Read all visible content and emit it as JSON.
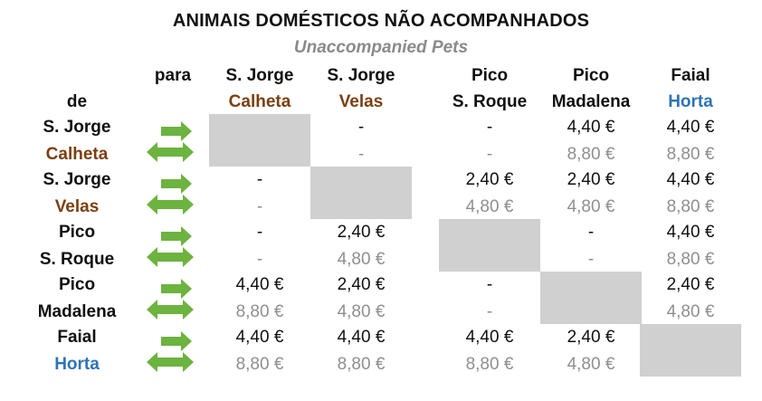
{
  "title": "ANIMAIS DOMÉSTICOS  NÃO ACOMPANHADOS",
  "subtitle": "Unaccompanied Pets",
  "corner": {
    "para": "para",
    "de": "de"
  },
  "columns": [
    {
      "line1": "S. Jorge",
      "line2": "Calheta",
      "color2": "brown"
    },
    {
      "line1": "S. Jorge",
      "line2": "Velas",
      "color2": "brown"
    },
    {
      "line1": "Pico",
      "line2": "S. Roque",
      "color2": "black"
    },
    {
      "line1": "Pico",
      "line2": "Madalena",
      "color2": "black"
    },
    {
      "line1": "Faial",
      "line2": "Horta",
      "color2": "blue"
    }
  ],
  "rows": [
    {
      "line1": "S. Jorge",
      "line2": "Calheta",
      "color2": "brown",
      "cells": [
        null,
        {
          "top": "-",
          "bot": "-"
        },
        {
          "top": "-",
          "bot": "-"
        },
        {
          "top": "4,40 €",
          "bot": "8,80 €"
        },
        {
          "top": "4,40 €",
          "bot": "8,80 €"
        }
      ]
    },
    {
      "line1": "S. Jorge",
      "line2": "Velas",
      "color2": "brown",
      "cells": [
        {
          "top": "-",
          "bot": "-"
        },
        null,
        {
          "top": "2,40 €",
          "bot": "4,80 €"
        },
        {
          "top": "2,40 €",
          "bot": "4,80 €"
        },
        {
          "top": "4,40 €",
          "bot": "8,80 €"
        }
      ]
    },
    {
      "line1": "Pico",
      "line2": "S. Roque",
      "color2": "black",
      "cells": [
        {
          "top": "-",
          "bot": "-"
        },
        {
          "top": "2,40 €",
          "bot": "4,80 €"
        },
        null,
        {
          "top": "-",
          "bot": "-"
        },
        {
          "top": "4,40 €",
          "bot": "8,80 €"
        }
      ]
    },
    {
      "line1": "Pico",
      "line2": "Madalena",
      "color2": "black",
      "cells": [
        {
          "top": "4,40 €",
          "bot": "8,80 €"
        },
        {
          "top": "2,40 €",
          "bot": "4,80 €"
        },
        {
          "top": "-",
          "bot": "-"
        },
        null,
        {
          "top": "2,40 €",
          "bot": "4,80 €"
        }
      ]
    },
    {
      "line1": "Faial",
      "line2": "Horta",
      "color2": "blue",
      "cells": [
        {
          "top": "4,40 €",
          "bot": "8,80 €"
        },
        {
          "top": "4,40 €",
          "bot": "8,80 €"
        },
        {
          "top": "4,40 €",
          "bot": "8,80 €"
        },
        {
          "top": "2,40 €",
          "bot": "4,80 €"
        },
        null
      ]
    }
  ],
  "icons": {
    "direction": "one-way-and-return-arrows-icon"
  },
  "colors": {
    "brown": "#7b3f10",
    "blue": "#2e74b5",
    "arrow_green": "#6cb33f",
    "empty_cell": "#d0d0d0",
    "secondary_price": "#8f8f8f",
    "subtitle": "#8a8a8a"
  }
}
